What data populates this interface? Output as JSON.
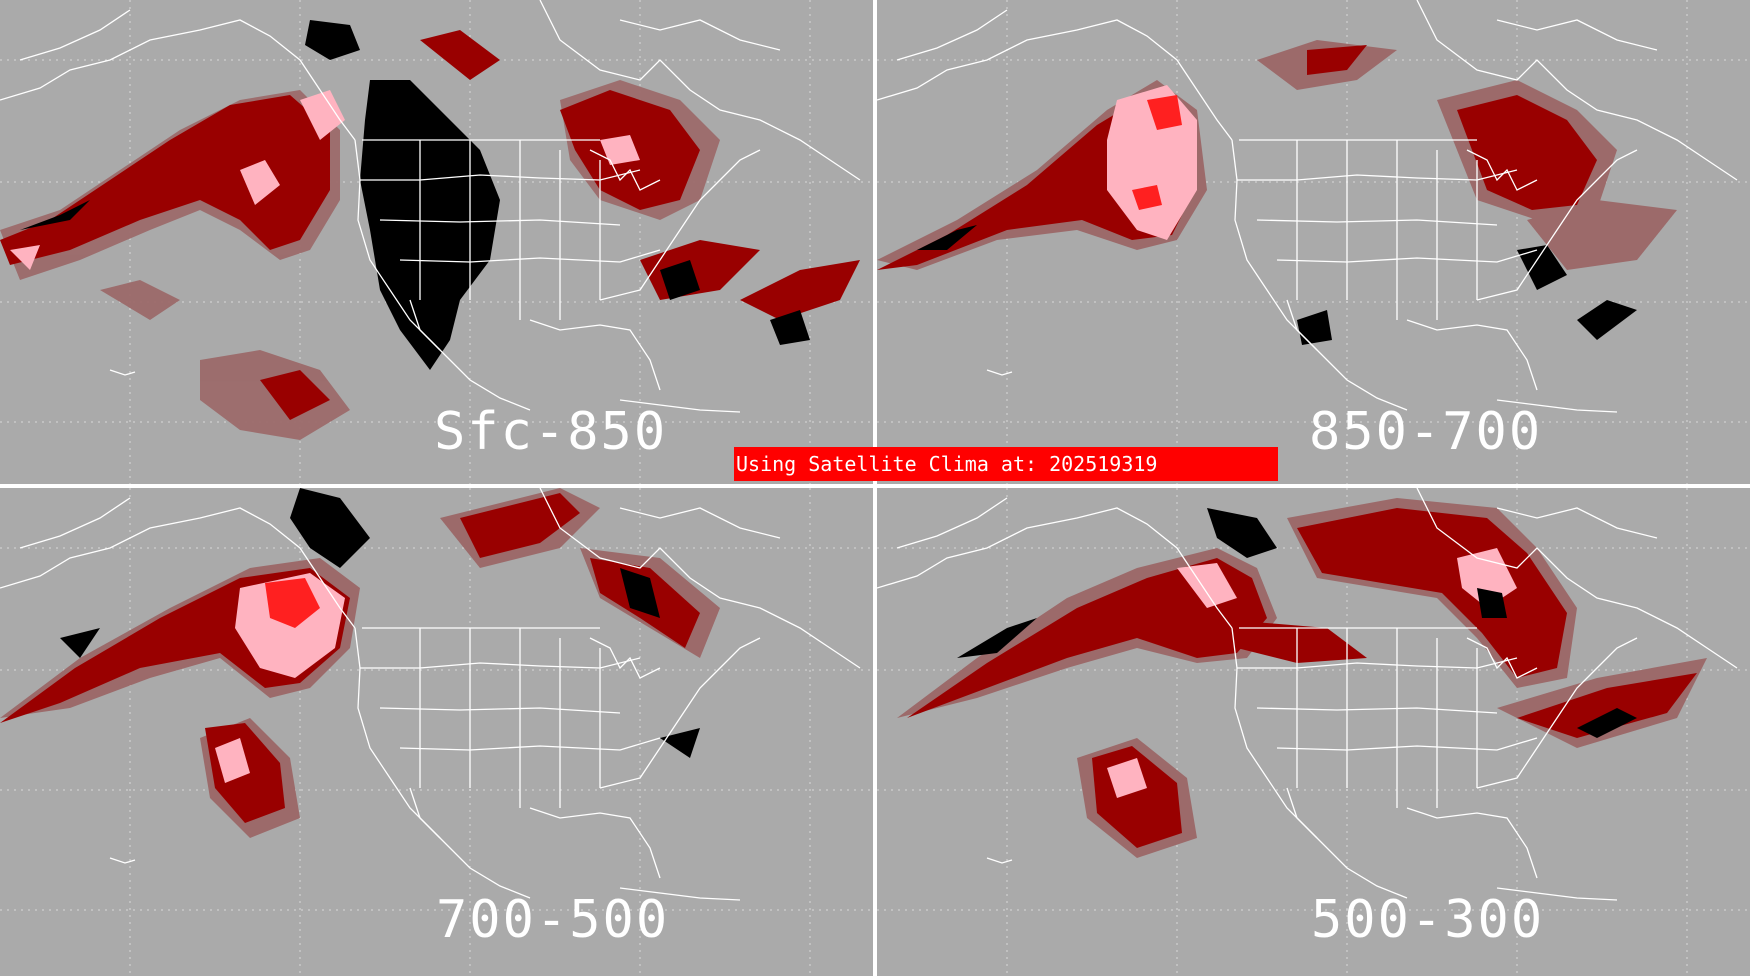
{
  "panels": [
    {
      "id": "sfc-850",
      "label": "Sfc-850"
    },
    {
      "id": "850-700",
      "label": "850-700"
    },
    {
      "id": "700-500",
      "label": "700-500"
    },
    {
      "id": "500-300",
      "label": "500-300"
    }
  ],
  "banner": {
    "text": "Using Satellite Clima at: 202519319"
  },
  "colors": {
    "background": "#aaaaaa",
    "lowest_category": "#9c6a6a",
    "dark_red": "#990000",
    "bright_red": "#ff2020",
    "pink": "#ffb3c0",
    "black": "#000000",
    "map_lines": "#ffffff",
    "banner": "#ff0000"
  }
}
